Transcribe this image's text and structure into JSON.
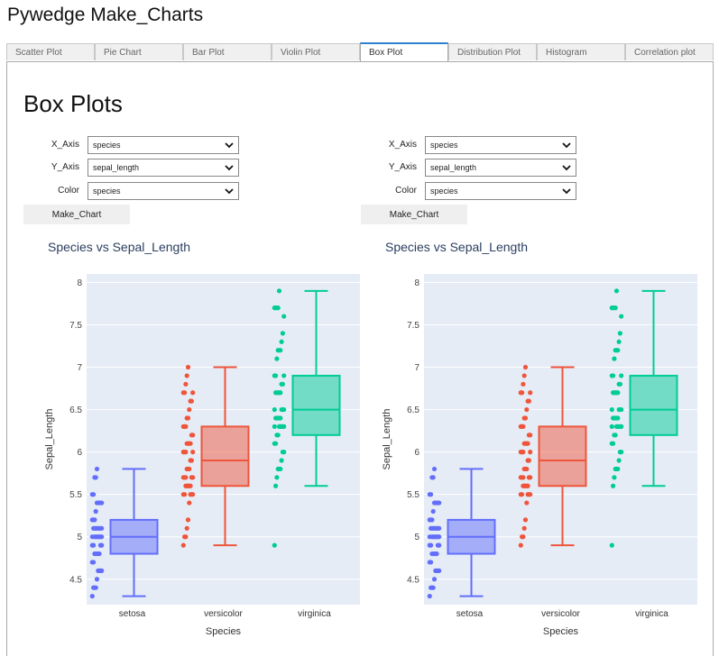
{
  "app": {
    "title": "Pywedge Make_Charts"
  },
  "tabs": [
    {
      "label": "Scatter Plot",
      "active": false
    },
    {
      "label": "Pie Chart",
      "active": false
    },
    {
      "label": "Bar Plot",
      "active": false
    },
    {
      "label": "Violin Plot",
      "active": false
    },
    {
      "label": "Box Plot",
      "active": true
    },
    {
      "label": "Distribution Plot",
      "active": false
    },
    {
      "label": "Histogram",
      "active": false
    },
    {
      "label": "Correlation plot",
      "active": false
    }
  ],
  "page": {
    "heading": "Box Plots"
  },
  "forms": [
    {
      "x_axis_label": "X_Axis",
      "x_axis_value": "species",
      "y_axis_label": "Y_Axis",
      "y_axis_value": "sepal_length",
      "color_label": "Color",
      "color_value": "species",
      "button_label": "Make_Chart"
    },
    {
      "x_axis_label": "X_Axis",
      "x_axis_value": "species",
      "y_axis_label": "Y_Axis",
      "y_axis_value": "sepal_length",
      "color_label": "Color",
      "color_value": "species",
      "button_label": "Make_Chart"
    }
  ],
  "colors": {
    "setosa": "#636efa",
    "versicolor": "#ef553b",
    "virginica": "#00cc96",
    "plot_bg": "#e5ecf6",
    "title": "#2a3f5f"
  },
  "chart_data": [
    {
      "type": "box",
      "title": "Species vs Sepal_Length",
      "xlabel": "Species",
      "ylabel": "Sepal_Length",
      "ylim": [
        4.2,
        8.1
      ],
      "yticks": [
        "4.5",
        "5",
        "5.5",
        "6",
        "6.5",
        "7",
        "7.5",
        "8"
      ],
      "categories": [
        "setosa",
        "versicolor",
        "virginica"
      ],
      "grid": true,
      "series": [
        {
          "category": "setosa",
          "min": 4.3,
          "q1": 4.8,
          "median": 5.0,
          "q3": 5.2,
          "max": 5.8,
          "points": [
            4.3,
            4.4,
            4.4,
            4.4,
            4.5,
            4.6,
            4.6,
            4.6,
            4.6,
            4.7,
            4.7,
            4.8,
            4.8,
            4.8,
            4.8,
            4.8,
            4.9,
            4.9,
            4.9,
            4.9,
            5.0,
            5.0,
            5.0,
            5.0,
            5.0,
            5.0,
            5.0,
            5.0,
            5.1,
            5.1,
            5.1,
            5.1,
            5.1,
            5.1,
            5.1,
            5.1,
            5.2,
            5.2,
            5.2,
            5.3,
            5.4,
            5.4,
            5.4,
            5.4,
            5.4,
            5.5,
            5.5,
            5.7,
            5.7,
            5.8
          ]
        },
        {
          "category": "versicolor",
          "min": 4.9,
          "q1": 5.6,
          "median": 5.9,
          "q3": 6.3,
          "max": 7.0,
          "points": [
            4.9,
            5.0,
            5.0,
            5.1,
            5.2,
            5.4,
            5.5,
            5.5,
            5.5,
            5.5,
            5.5,
            5.6,
            5.6,
            5.6,
            5.6,
            5.6,
            5.7,
            5.7,
            5.7,
            5.7,
            5.7,
            5.8,
            5.8,
            5.8,
            5.9,
            5.9,
            6.0,
            6.0,
            6.0,
            6.0,
            6.1,
            6.1,
            6.1,
            6.1,
            6.2,
            6.2,
            6.3,
            6.3,
            6.3,
            6.4,
            6.4,
            6.5,
            6.6,
            6.6,
            6.7,
            6.7,
            6.7,
            6.8,
            6.9,
            7.0
          ]
        },
        {
          "category": "virginica",
          "min": 5.6,
          "q1": 6.2,
          "median": 6.5,
          "q3": 6.9,
          "max": 7.9,
          "points": [
            4.9,
            5.6,
            5.7,
            5.8,
            5.8,
            5.8,
            5.9,
            6.0,
            6.0,
            6.1,
            6.1,
            6.2,
            6.2,
            6.3,
            6.3,
            6.3,
            6.3,
            6.3,
            6.3,
            6.4,
            6.4,
            6.4,
            6.4,
            6.4,
            6.5,
            6.5,
            6.5,
            6.5,
            6.7,
            6.7,
            6.7,
            6.7,
            6.7,
            6.8,
            6.8,
            6.9,
            6.9,
            6.9,
            7.1,
            7.2,
            7.2,
            7.2,
            7.3,
            7.4,
            7.6,
            7.7,
            7.7,
            7.7,
            7.7,
            7.9
          ]
        }
      ]
    },
    {
      "type": "box",
      "title": "Species vs Sepal_Length",
      "xlabel": "Species",
      "ylabel": "Sepal_Length",
      "ylim": [
        4.2,
        8.1
      ],
      "yticks": [
        "4.5",
        "5",
        "5.5",
        "6",
        "6.5",
        "7",
        "7.5",
        "8"
      ],
      "categories": [
        "setosa",
        "versicolor",
        "virginica"
      ],
      "grid": true,
      "series": [
        {
          "category": "setosa",
          "min": 4.3,
          "q1": 4.8,
          "median": 5.0,
          "q3": 5.2,
          "max": 5.8,
          "points": [
            4.3,
            4.4,
            4.4,
            4.4,
            4.5,
            4.6,
            4.6,
            4.6,
            4.6,
            4.7,
            4.7,
            4.8,
            4.8,
            4.8,
            4.8,
            4.8,
            4.9,
            4.9,
            4.9,
            4.9,
            5.0,
            5.0,
            5.0,
            5.0,
            5.0,
            5.0,
            5.0,
            5.0,
            5.1,
            5.1,
            5.1,
            5.1,
            5.1,
            5.1,
            5.1,
            5.1,
            5.2,
            5.2,
            5.2,
            5.3,
            5.4,
            5.4,
            5.4,
            5.4,
            5.4,
            5.5,
            5.5,
            5.7,
            5.7,
            5.8
          ]
        },
        {
          "category": "versicolor",
          "min": 4.9,
          "q1": 5.6,
          "median": 5.9,
          "q3": 6.3,
          "max": 7.0,
          "points": [
            4.9,
            5.0,
            5.0,
            5.1,
            5.2,
            5.4,
            5.5,
            5.5,
            5.5,
            5.5,
            5.5,
            5.6,
            5.6,
            5.6,
            5.6,
            5.6,
            5.7,
            5.7,
            5.7,
            5.7,
            5.7,
            5.8,
            5.8,
            5.8,
            5.9,
            5.9,
            6.0,
            6.0,
            6.0,
            6.0,
            6.1,
            6.1,
            6.1,
            6.1,
            6.2,
            6.2,
            6.3,
            6.3,
            6.3,
            6.4,
            6.4,
            6.5,
            6.6,
            6.6,
            6.7,
            6.7,
            6.7,
            6.8,
            6.9,
            7.0
          ]
        },
        {
          "category": "virginica",
          "min": 5.6,
          "q1": 6.2,
          "median": 6.5,
          "q3": 6.9,
          "max": 7.9,
          "points": [
            4.9,
            5.6,
            5.7,
            5.8,
            5.8,
            5.8,
            5.9,
            6.0,
            6.0,
            6.1,
            6.1,
            6.2,
            6.2,
            6.3,
            6.3,
            6.3,
            6.3,
            6.3,
            6.3,
            6.4,
            6.4,
            6.4,
            6.4,
            6.4,
            6.5,
            6.5,
            6.5,
            6.5,
            6.7,
            6.7,
            6.7,
            6.7,
            6.7,
            6.8,
            6.8,
            6.9,
            6.9,
            6.9,
            7.1,
            7.2,
            7.2,
            7.2,
            7.3,
            7.4,
            7.6,
            7.7,
            7.7,
            7.7,
            7.7,
            7.9
          ]
        }
      ]
    }
  ]
}
